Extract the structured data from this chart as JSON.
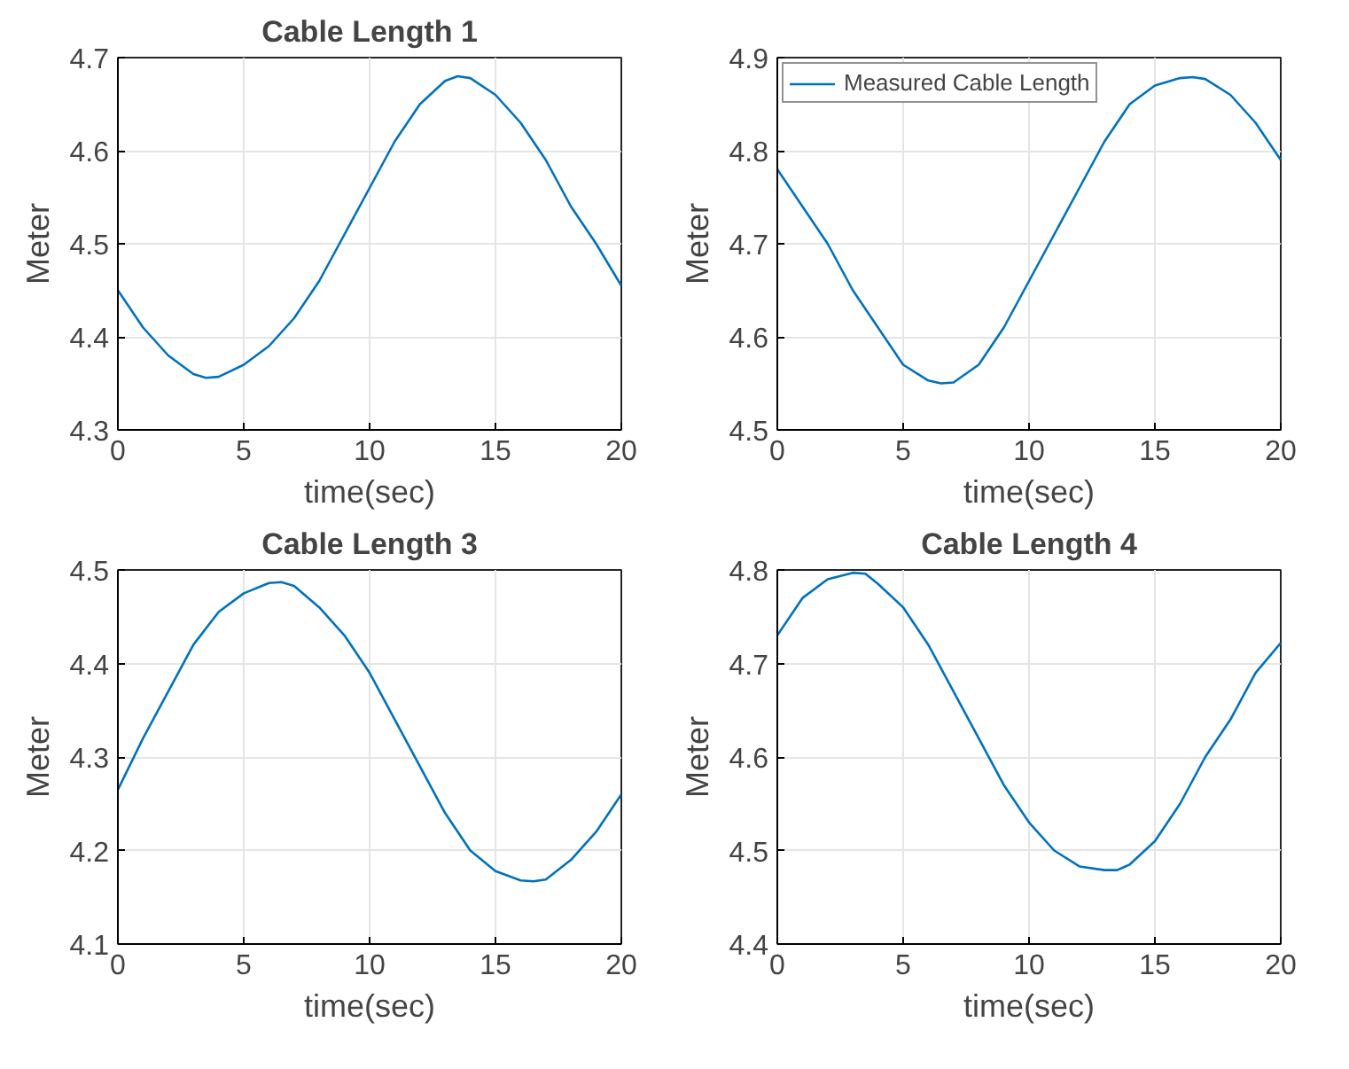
{
  "chart_data": [
    {
      "type": "line",
      "title": "Cable Length 1",
      "xlabel": "time(sec)",
      "ylabel": "Meter",
      "xlim": [
        0,
        20
      ],
      "ylim": [
        4.3,
        4.7
      ],
      "xticks": [
        0,
        5,
        10,
        15,
        20
      ],
      "yticks": [
        4.3,
        4.4,
        4.5,
        4.6,
        4.7
      ],
      "grid": true,
      "x": [
        0,
        1,
        2,
        3,
        3.5,
        4,
        5,
        6,
        7,
        8,
        9,
        10,
        11,
        12,
        13,
        13.5,
        14,
        15,
        16,
        17,
        18,
        19,
        20
      ],
      "series": [
        {
          "color": "#0072bd",
          "values": [
            4.45,
            4.41,
            4.38,
            4.36,
            4.356,
            4.357,
            4.37,
            4.39,
            4.42,
            4.46,
            4.51,
            4.56,
            4.61,
            4.65,
            4.675,
            4.68,
            4.678,
            4.66,
            4.63,
            4.59,
            4.54,
            4.5,
            4.455
          ]
        }
      ]
    },
    {
      "type": "line",
      "xlabel": "time(sec)",
      "ylabel": "Meter",
      "xlim": [
        0,
        20
      ],
      "ylim": [
        4.5,
        4.9
      ],
      "xticks": [
        0,
        5,
        10,
        15,
        20
      ],
      "yticks": [
        4.5,
        4.6,
        4.7,
        4.8,
        4.9
      ],
      "grid": true,
      "legend": "top left",
      "x": [
        0,
        1,
        2,
        3,
        4,
        5,
        6,
        6.5,
        7,
        8,
        9,
        10,
        11,
        12,
        13,
        14,
        15,
        16,
        16.5,
        17,
        18,
        19,
        20
      ],
      "series": [
        {
          "name": "Measured Cable Length",
          "color": "#0072bd",
          "values": [
            4.78,
            4.74,
            4.7,
            4.65,
            4.61,
            4.57,
            4.553,
            4.55,
            4.551,
            4.57,
            4.61,
            4.66,
            4.71,
            4.76,
            4.81,
            4.85,
            4.87,
            4.878,
            4.879,
            4.877,
            4.86,
            4.83,
            4.79
          ]
        }
      ]
    },
    {
      "type": "line",
      "title": "Cable Length 3",
      "xlabel": "time(sec)",
      "ylabel": "Meter",
      "xlim": [
        0,
        20
      ],
      "ylim": [
        4.1,
        4.5
      ],
      "xticks": [
        0,
        5,
        10,
        15,
        20
      ],
      "yticks": [
        4.1,
        4.2,
        4.3,
        4.4,
        4.5
      ],
      "grid": true,
      "x": [
        0,
        1,
        2,
        3,
        4,
        5,
        6,
        6.5,
        7,
        8,
        9,
        10,
        11,
        12,
        13,
        14,
        15,
        16,
        16.5,
        17,
        18,
        19,
        20
      ],
      "series": [
        {
          "color": "#0072bd",
          "values": [
            4.265,
            4.32,
            4.37,
            4.42,
            4.455,
            4.475,
            4.486,
            4.487,
            4.483,
            4.46,
            4.43,
            4.39,
            4.34,
            4.29,
            4.24,
            4.2,
            4.178,
            4.168,
            4.167,
            4.169,
            4.19,
            4.22,
            4.26
          ]
        }
      ]
    },
    {
      "type": "line",
      "title": "Cable Length 4",
      "xlabel": "time(sec)",
      "ylabel": "Meter",
      "xlim": [
        0,
        20
      ],
      "ylim": [
        4.4,
        4.8
      ],
      "xticks": [
        0,
        5,
        10,
        15,
        20
      ],
      "yticks": [
        4.4,
        4.5,
        4.6,
        4.7,
        4.8
      ],
      "grid": true,
      "x": [
        0,
        1,
        2,
        3,
        3.5,
        4,
        5,
        6,
        7,
        8,
        9,
        10,
        11,
        12,
        13,
        13.5,
        14,
        15,
        16,
        17,
        18,
        19,
        20
      ],
      "series": [
        {
          "color": "#0072bd",
          "values": [
            4.73,
            4.77,
            4.79,
            4.797,
            4.796,
            4.785,
            4.76,
            4.72,
            4.67,
            4.62,
            4.57,
            4.53,
            4.5,
            4.483,
            4.479,
            4.479,
            4.485,
            4.51,
            4.55,
            4.6,
            4.64,
            4.69,
            4.722
          ]
        }
      ]
    }
  ]
}
